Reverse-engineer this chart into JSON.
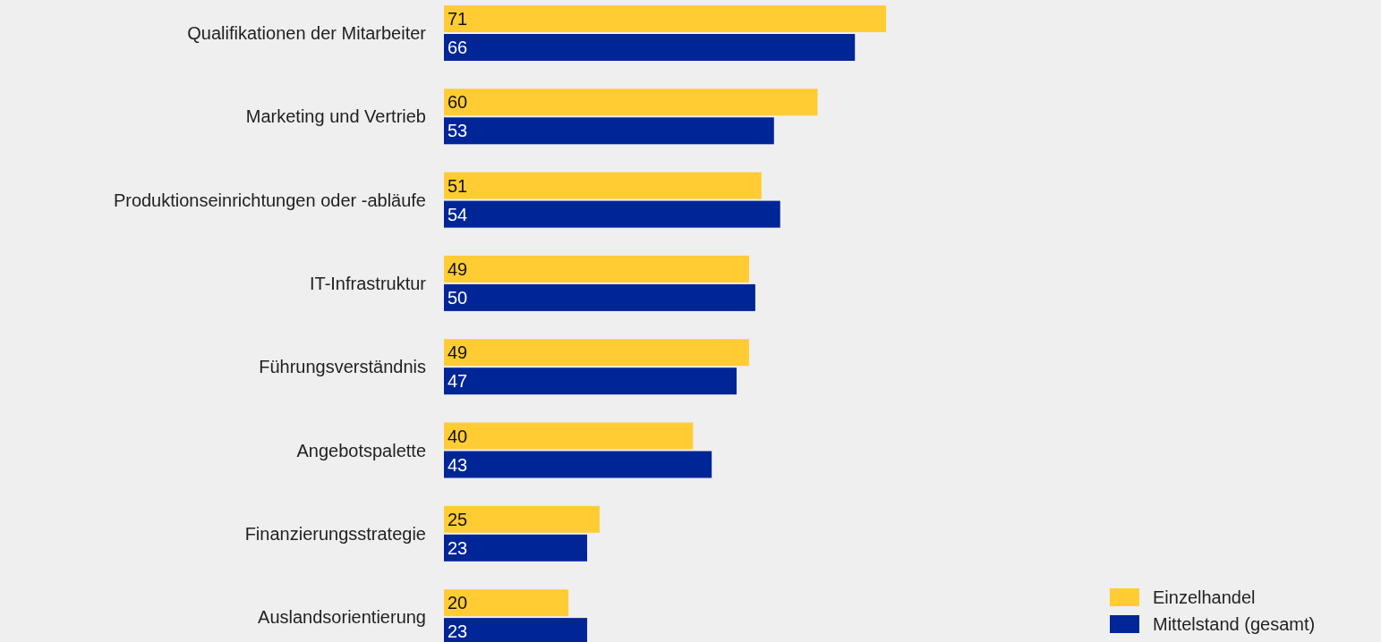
{
  "chart_data": {
    "type": "bar",
    "orientation": "horizontal",
    "categories": [
      "Qualifikationen der Mitarbeiter",
      "Marketing und Vertrieb",
      "Produktionseinrichtungen oder -abläufe",
      "IT-Infrastruktur",
      "Führungsverständnis",
      "Angebotspalette",
      "Finanzierungsstrategie",
      "Auslandsorientierung"
    ],
    "series": [
      {
        "name": "Einzelhandel",
        "color": "#ffcc33",
        "values": [
          71,
          60,
          51,
          49,
          49,
          40,
          25,
          20
        ]
      },
      {
        "name": "Mittelstand (gesamt)",
        "color": "#002596",
        "values": [
          66,
          53,
          54,
          50,
          47,
          43,
          23,
          23
        ]
      }
    ],
    "data_labels": true,
    "legend": "bottom right"
  }
}
